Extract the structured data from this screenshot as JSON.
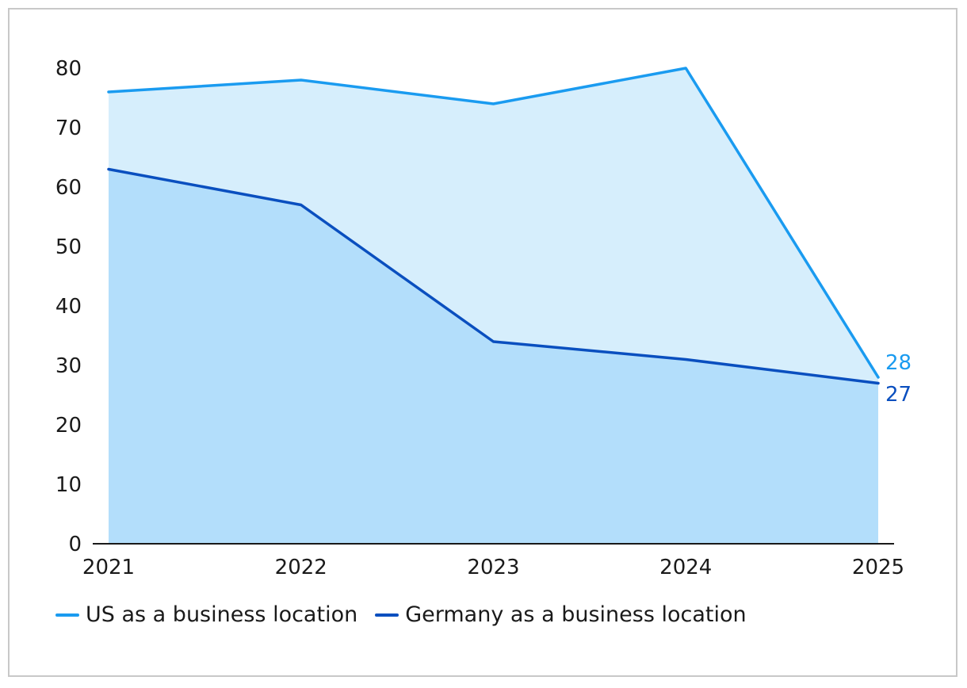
{
  "chart_data": {
    "type": "area",
    "x": [
      "2021",
      "2022",
      "2023",
      "2024",
      "2025"
    ],
    "ylim": [
      0,
      80
    ],
    "yticks": [
      "0",
      "10",
      "20",
      "30",
      "40",
      "50",
      "60",
      "70",
      "80"
    ],
    "grid": false,
    "legend_position": "bottom-left",
    "series": [
      {
        "name": "US as a business location",
        "values": [
          76,
          78,
          74,
          80,
          28
        ],
        "end_label": "28",
        "color": "#1a9bf0",
        "fill": "#d6eefc"
      },
      {
        "name": "Germany as a business location",
        "values": [
          63,
          57,
          34,
          31,
          27
        ],
        "end_label": "27",
        "color": "#0a4fbf",
        "fill": "#b3defb"
      }
    ]
  }
}
